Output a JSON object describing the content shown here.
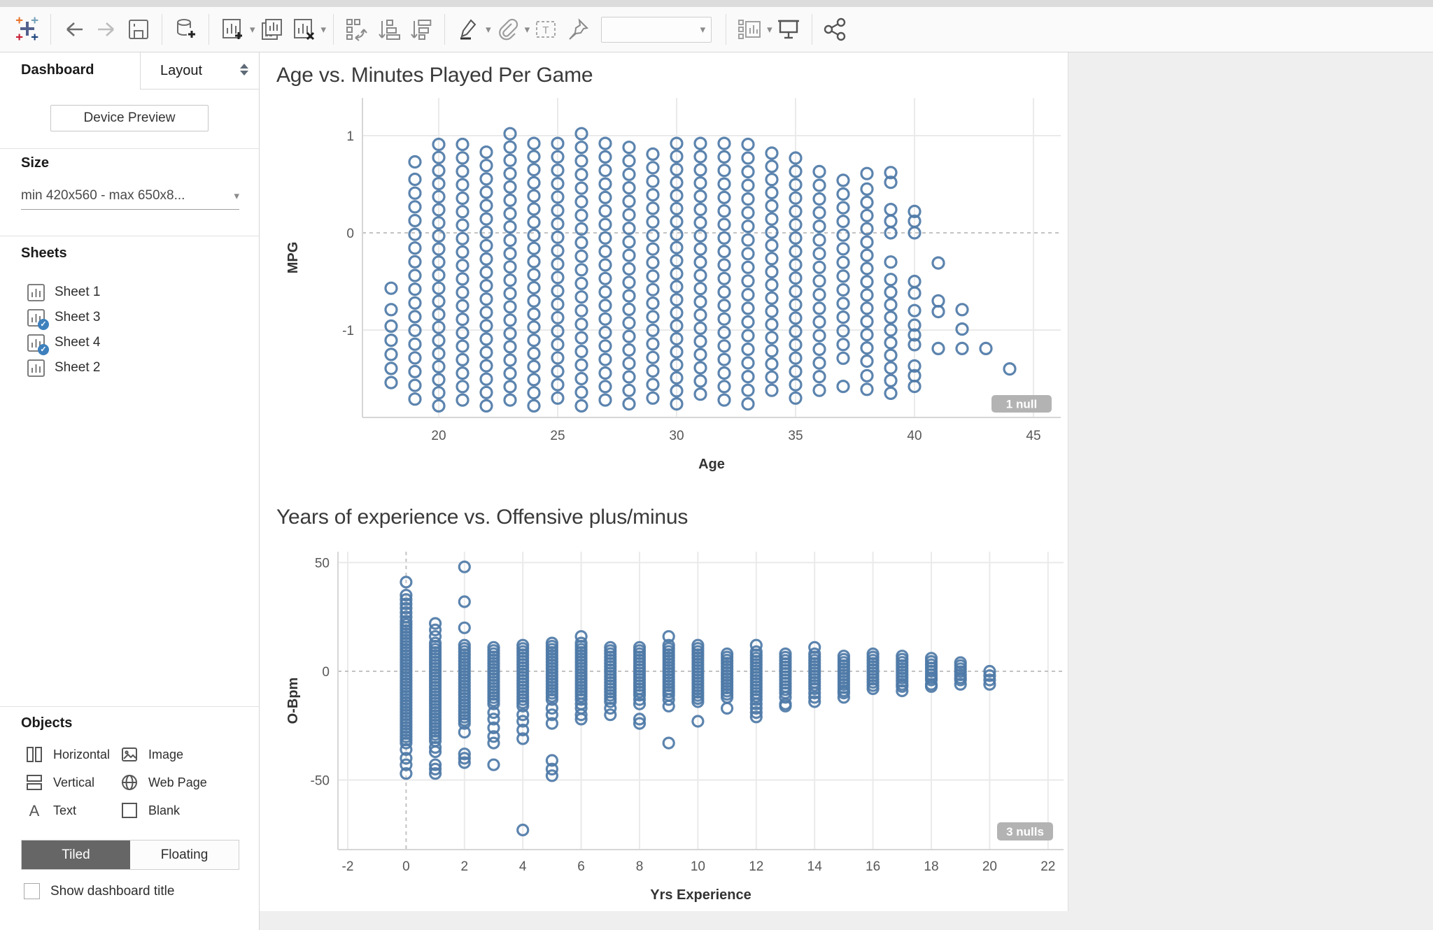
{
  "toolbar": {
    "icons": [
      "tableau-logo",
      "undo",
      "redo",
      "save",
      "new-data-source",
      "new-worksheet",
      "duplicate-sheet",
      "clear-sheet",
      "swap-rows-columns",
      "sort-ascending",
      "sort-descending",
      "highlight",
      "attachment",
      "text-box",
      "pin",
      "fit-selector",
      "show-hide-cards",
      "presentation-mode",
      "share"
    ],
    "fit_selector_value": ""
  },
  "sidebar": {
    "tabs": [
      {
        "label": "Dashboard",
        "active": true
      },
      {
        "label": "Layout",
        "active": false
      }
    ],
    "device_preview_label": "Device Preview",
    "size": {
      "header": "Size",
      "value": "min 420x560 - max 650x8..."
    },
    "sheets": {
      "header": "Sheets",
      "items": [
        {
          "label": "Sheet 1",
          "in_use": false
        },
        {
          "label": "Sheet 3",
          "in_use": true
        },
        {
          "label": "Sheet 4",
          "in_use": true
        },
        {
          "label": "Sheet 2",
          "in_use": false
        }
      ]
    },
    "objects": {
      "header": "Objects",
      "items": [
        {
          "label": "Horizontal",
          "icon": "horizontal-icon"
        },
        {
          "label": "Image",
          "icon": "image-icon"
        },
        {
          "label": "Vertical",
          "icon": "vertical-icon"
        },
        {
          "label": "Web Page",
          "icon": "web-page-icon"
        },
        {
          "label": "Text",
          "icon": "text-icon"
        },
        {
          "label": "Blank",
          "icon": "blank-icon"
        }
      ]
    },
    "layout_mode": {
      "tiled": "Tiled",
      "floating": "Floating",
      "active": "Tiled"
    },
    "show_title": {
      "label": "Show dashboard title",
      "checked": false
    }
  },
  "chart_data": [
    {
      "type": "scatter",
      "title": "Age vs. Minutes Played Per Game",
      "xlabel": "Age",
      "ylabel": "MPG",
      "x_ticks": [
        20,
        25,
        30,
        35,
        40,
        45
      ],
      "y_ticks": [
        1,
        0,
        -1
      ],
      "xlim": [
        16.8,
        46.1
      ],
      "ylim": [
        -1.9,
        1.4
      ],
      "grid": true,
      "zero_lines": "dashed",
      "marker": "open-circle",
      "color": "#4e79a7",
      "null_indicator": "1 null",
      "columns": [
        {
          "x": 18,
          "points": [
            -0.57,
            -0.79
          ],
          "runs": [
            [
              -0.96,
              -1.54
            ]
          ]
        },
        {
          "x": 19,
          "points": [
            0.73
          ],
          "runs": [
            [
              0.55,
              -1.71
            ]
          ]
        },
        {
          "x": 20,
          "runs": [
            [
              0.91,
              -1.78
            ]
          ]
        },
        {
          "x": 21,
          "runs": [
            [
              0.91,
              -1.72
            ]
          ]
        },
        {
          "x": 22,
          "runs": [
            [
              0.83,
              -1.78
            ]
          ]
        },
        {
          "x": 23,
          "runs": [
            [
              1.02,
              -1.72
            ]
          ]
        },
        {
          "x": 24,
          "runs": [
            [
              0.92,
              -1.78
            ]
          ]
        },
        {
          "x": 25,
          "runs": [
            [
              0.92,
              -1.7
            ]
          ]
        },
        {
          "x": 26,
          "runs": [
            [
              1.02,
              -1.78
            ]
          ]
        },
        {
          "x": 27,
          "runs": [
            [
              0.92,
              -1.72
            ]
          ]
        },
        {
          "x": 28,
          "runs": [
            [
              0.88,
              -1.76
            ]
          ]
        },
        {
          "x": 29,
          "runs": [
            [
              0.81,
              -1.7
            ]
          ]
        },
        {
          "x": 30,
          "runs": [
            [
              0.92,
              -1.76
            ]
          ]
        },
        {
          "x": 31,
          "runs": [
            [
              0.92,
              -1.66
            ]
          ]
        },
        {
          "x": 32,
          "runs": [
            [
              0.92,
              -1.72
            ]
          ]
        },
        {
          "x": 33,
          "runs": [
            [
              0.91,
              -1.76
            ]
          ]
        },
        {
          "x": 34,
          "runs": [
            [
              0.82,
              -1.62
            ]
          ]
        },
        {
          "x": 35,
          "runs": [
            [
              0.77,
              -1.7
            ]
          ]
        },
        {
          "x": 36,
          "runs": [
            [
              0.63,
              -1.62
            ]
          ]
        },
        {
          "x": 37,
          "points": [
            -1.58
          ],
          "runs": [
            [
              0.54,
              -1.29
            ]
          ]
        },
        {
          "x": 38,
          "points": [
            0.61,
            -1.47,
            -1.61
          ],
          "runs": [
            [
              0.45,
              -1.32
            ]
          ]
        },
        {
          "x": 39,
          "points": [
            0.62,
            0.52,
            -0.3
          ],
          "runs": [
            [
              0.24,
              0.0
            ],
            [
              -0.48,
              -1.65
            ]
          ]
        },
        {
          "x": 40,
          "points": [
            0.22,
            0.12,
            0.0,
            -0.5,
            -0.62,
            -0.8,
            -0.95,
            -1.05,
            -1.15,
            -1.37,
            -1.47,
            -1.58
          ]
        },
        {
          "x": 41,
          "points": [
            -0.31,
            -0.7,
            -0.81,
            -1.19
          ]
        },
        {
          "x": 42,
          "points": [
            -0.79,
            -0.99,
            -1.19
          ]
        },
        {
          "x": 43,
          "points": [
            -1.19
          ]
        },
        {
          "x": 44,
          "points": [
            -1.4
          ]
        }
      ]
    },
    {
      "type": "scatter",
      "title": "Years of experience vs. Offensive plus/minus",
      "xlabel": "Yrs Experience",
      "ylabel": "O-Bpm",
      "x_ticks": [
        -2,
        0,
        2,
        4,
        6,
        8,
        10,
        12,
        14,
        16,
        18,
        20,
        22
      ],
      "y_ticks": [
        50,
        0,
        -50
      ],
      "xlim": [
        -2.4,
        22.5
      ],
      "ylim": [
        -82,
        55
      ],
      "grid": true,
      "zero_lines": "dashed",
      "marker": "open-circle",
      "color": "#4e79a7",
      "null_indicator": "3 nulls",
      "columns": [
        {
          "x": 0,
          "points": [
            41,
            35,
            33,
            31,
            29,
            27,
            25,
            -36,
            -40,
            -43,
            -47
          ],
          "runs": [
            [
              23,
              -33
            ]
          ]
        },
        {
          "x": 1,
          "points": [
            22,
            19,
            16,
            -35,
            -37,
            -43,
            -45,
            -47
          ],
          "runs": [
            [
              13,
              -32
            ]
          ]
        },
        {
          "x": 2,
          "points": [
            48,
            32,
            20,
            -28,
            -38,
            -40,
            -42
          ],
          "runs": [
            [
              12,
              -24
            ]
          ]
        },
        {
          "x": 3,
          "points": [
            -19,
            -22,
            -26,
            -30,
            -33,
            -43
          ],
          "runs": [
            [
              11,
              -15
            ]
          ]
        },
        {
          "x": 4,
          "points": [
            -20,
            -23,
            -27,
            -31,
            -73
          ],
          "runs": [
            [
              12,
              -16
            ]
          ]
        },
        {
          "x": 5,
          "points": [
            -17,
            -20,
            -24,
            -41,
            -45,
            -48
          ],
          "runs": [
            [
              13,
              -13
            ]
          ]
        },
        {
          "x": 6,
          "points": [
            16,
            -15,
            -17,
            -20,
            -22
          ],
          "runs": [
            [
              13,
              -13
            ]
          ]
        },
        {
          "x": 7,
          "points": [
            -17,
            -20
          ],
          "runs": [
            [
              11,
              -14
            ]
          ]
        },
        {
          "x": 8,
          "points": [
            -13,
            -15,
            -22,
            -24
          ],
          "runs": [
            [
              11,
              -11
            ]
          ]
        },
        {
          "x": 9,
          "points": [
            16,
            -13,
            -16,
            -33
          ],
          "runs": [
            [
              12,
              -11
            ]
          ]
        },
        {
          "x": 10,
          "points": [
            -23
          ],
          "runs": [
            [
              12,
              -14
            ]
          ]
        },
        {
          "x": 11,
          "points": [
            -17
          ],
          "runs": [
            [
              8,
              -12
            ]
          ]
        },
        {
          "x": 12,
          "points": [
            12,
            -15,
            -17,
            -19,
            -21
          ],
          "runs": [
            [
              9,
              -13
            ]
          ]
        },
        {
          "x": 13,
          "points": [
            -12,
            -15,
            -16
          ],
          "runs": [
            [
              8,
              -10
            ]
          ]
        },
        {
          "x": 14,
          "points": [
            11,
            -10,
            -12,
            -14
          ],
          "runs": [
            [
              8,
              -8
            ]
          ]
        },
        {
          "x": 15,
          "points": [
            -10,
            -12
          ],
          "runs": [
            [
              7,
              -9
            ]
          ]
        },
        {
          "x": 16,
          "runs": [
            [
              8,
              -8
            ]
          ]
        },
        {
          "x": 17,
          "points": [
            -7,
            -9
          ],
          "runs": [
            [
              7,
              -6
            ]
          ]
        },
        {
          "x": 18,
          "points": [
            -4,
            -6,
            -7
          ],
          "runs": [
            [
              6,
              -3
            ]
          ]
        },
        {
          "x": 19,
          "points": [
            -4,
            -6
          ],
          "runs": [
            [
              4,
              -3
            ]
          ]
        },
        {
          "x": 20,
          "points": [
            0,
            -2,
            -4,
            -6
          ]
        }
      ]
    }
  ]
}
